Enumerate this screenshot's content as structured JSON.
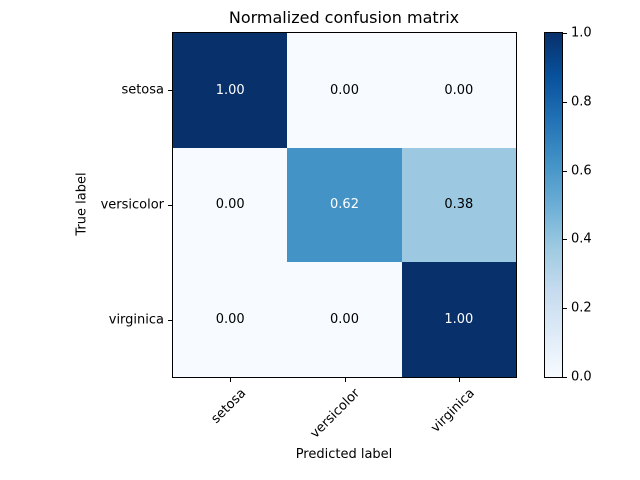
{
  "figure": {
    "title": "Normalized confusion matrix"
  },
  "chart_data": {
    "type": "heatmap",
    "title": "Normalized confusion matrix",
    "xlabel": "Predicted label",
    "ylabel": "True label",
    "x_categories": [
      "setosa",
      "versicolor",
      "virginica"
    ],
    "y_categories": [
      "setosa",
      "versicolor",
      "virginica"
    ],
    "matrix": [
      [
        1.0,
        0.0,
        0.0
      ],
      [
        0.0,
        0.62,
        0.38
      ],
      [
        0.0,
        0.0,
        1.0
      ]
    ],
    "cell_labels": [
      [
        "1.00",
        "0.00",
        "0.00"
      ],
      [
        "0.00",
        "0.62",
        "0.38"
      ],
      [
        "0.00",
        "0.00",
        "1.00"
      ]
    ],
    "vmin": 0.0,
    "vmax": 1.0,
    "colormap": "Blues",
    "colormap_stops": [
      {
        "t": 0.0,
        "c": "#f7fbff"
      },
      {
        "t": 0.125,
        "c": "#deebf7"
      },
      {
        "t": 0.25,
        "c": "#c6dbef"
      },
      {
        "t": 0.375,
        "c": "#9ecae1"
      },
      {
        "t": 0.5,
        "c": "#6baed6"
      },
      {
        "t": 0.625,
        "c": "#4292c6"
      },
      {
        "t": 0.75,
        "c": "#2171b5"
      },
      {
        "t": 0.875,
        "c": "#08519c"
      },
      {
        "t": 1.0,
        "c": "#08306b"
      }
    ],
    "text_threshold": 0.5,
    "cell_text_color_high": "#ffffff",
    "cell_text_color_low": "#000000",
    "colorbar_ticks": [
      {
        "value": 1.0,
        "label": "1.0"
      },
      {
        "value": 0.8,
        "label": "0.8"
      },
      {
        "value": 0.6,
        "label": "0.6"
      },
      {
        "value": 0.4,
        "label": "0.4"
      },
      {
        "value": 0.2,
        "label": "0.2"
      },
      {
        "value": 0.0,
        "label": "0.0"
      }
    ],
    "legend_position": "right-colorbar",
    "grid": false
  }
}
